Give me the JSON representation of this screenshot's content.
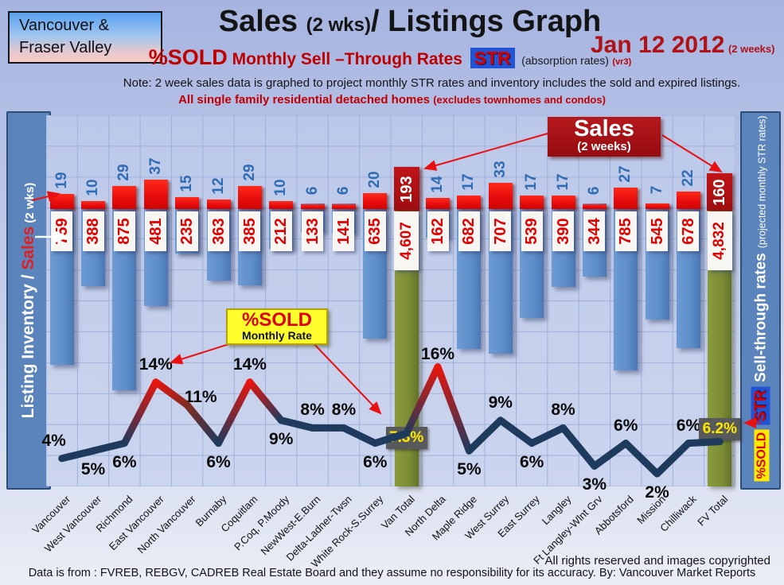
{
  "header": {
    "logo_line1": "Vancouver &",
    "logo_line2": "Fraser Valley",
    "title_main": "Sales ",
    "title_wks": "(2 wks)",
    "title_rest": "/ Listings Graph",
    "date": "Jan 12 2012",
    "date_note": "(2 weeks)",
    "subtitle_sold": "%SOLD",
    "subtitle_rates": " Monthly Sell –Through Rates ",
    "subtitle_str": "STR",
    "subtitle_absorption": "(absorption rates)",
    "subtitle_version": "(vr3)",
    "note": "Note: 2 week sales data is graphed to project monthly STR rates and inventory includes the sold and expired listings.",
    "scope": "All single family residential detached homes ",
    "scope_note": "(excludes townhomes and condos)"
  },
  "left_axis": {
    "label_white": "Listing Inventory / ",
    "label_red": "Sales",
    "label_suffix": " (2  wks)"
  },
  "right_axis": {
    "badge_sold": "%SOLD",
    "badge_str": "STR",
    "label": "Sell-through rates",
    "label_note": "(projected monthly STR rates)"
  },
  "annotations": {
    "sales_callout_line1": "Sales",
    "sales_callout_line2": "(2 weeks)",
    "sold_callout_line1": "%SOLD",
    "sold_callout_line2": "Monthly Rate"
  },
  "footer": {
    "rights": "All rights reserved and  images copyrighted",
    "source": "Data is from : FVREB, REBGV, CADREB Real Estate Board and they assume no responsibility for its accuracy. By: Vancouver Market Reports"
  },
  "colors": {
    "sales_bar": "#e80d0d",
    "total_box": "#9e0d10",
    "inventory_bar": "#5d8ec9",
    "total_bar": "#7c8d34",
    "line_navy": "#1e3a5c",
    "line_peak_red": "#e8150d",
    "line_mid": "#7e2c22",
    "pct_box_bg": "#58595b",
    "pct_box_text": "#ffe900",
    "inventory_text": "#e00000",
    "sales_text": "#2f6cb4",
    "accent_dark_red": "#b01115",
    "str_badge_blue": "#2053d6"
  },
  "chart_data": {
    "type": "bar+line combo",
    "title": "Sales (2 wks)/ Listings Graph",
    "date": "Jan 12 2012 (2 weeks)",
    "categories": [
      "Vancouver",
      "West Vancouver",
      "Richmond",
      "East Vancouver",
      "North Vancouver",
      "Burnaby",
      "Coquitlam",
      "P.Coq, P.Moody",
      "NewWest-E.Burn",
      "Delta-Ladner-Twsn",
      "White Rock-S.Surrey",
      "Van Total",
      "North Delta",
      "Maple Ridge",
      "West Surrey",
      "East Surrey",
      "Langley",
      "Ft Langley-Wlnt Grv",
      "Abbotsford",
      "Mission",
      "Chilliwack",
      "FV Total"
    ],
    "series": [
      {
        "name": "Sales (2 weeks)",
        "type": "bar",
        "values": [
          19,
          10,
          29,
          37,
          15,
          12,
          29,
          10,
          6,
          6,
          20,
          193,
          14,
          17,
          33,
          17,
          17,
          6,
          27,
          7,
          22,
          160
        ]
      },
      {
        "name": "Listing Inventory",
        "type": "bar",
        "values": [
          759,
          388,
          875,
          481,
          235,
          363,
          385,
          212,
          133,
          141,
          635,
          4607,
          162,
          682,
          707,
          539,
          390,
          344,
          785,
          545,
          678,
          4832
        ]
      },
      {
        "name": "%SOLD Monthly Rate (projected STR)",
        "type": "line",
        "values": [
          4,
          5,
          6,
          14,
          11,
          6,
          14,
          9,
          8,
          8,
          6,
          7.3,
          16,
          5,
          9,
          6,
          8,
          3,
          6,
          2,
          6,
          6.2
        ]
      }
    ],
    "sales_labels": [
      "19",
      "10",
      "29",
      "37",
      "15",
      "12",
      "29",
      "10",
      "6",
      "6",
      "20",
      "193",
      "14",
      "17",
      "33",
      "17",
      "17",
      "6",
      "27",
      "7",
      "22",
      "160"
    ],
    "inventory_labels": [
      "759",
      "388",
      "875",
      "481",
      "235",
      "363",
      "385",
      "212",
      "133",
      "141",
      "635",
      "4,607",
      "162",
      "682",
      "707",
      "539",
      "390",
      "344",
      "785",
      "545",
      "678",
      "4,832"
    ],
    "pct_labels": [
      "4%",
      "5%",
      "6%",
      "14%",
      "11%",
      "6%",
      "14%",
      "9%",
      "8%",
      "8%",
      "6%",
      "7.3%",
      "16%",
      "5%",
      "9%",
      "6%",
      "8%",
      "3%",
      "6%",
      "2%",
      "6%",
      "6.2%"
    ],
    "pct_label_side": [
      "above",
      "below",
      "below",
      "above",
      "above",
      "below",
      "above",
      "below",
      "above",
      "above",
      "below",
      "box",
      "above",
      "below",
      "above",
      "below",
      "above",
      "below",
      "above",
      "below",
      "above",
      "box"
    ],
    "totals_index": [
      11,
      21
    ],
    "legend_position": "rails (left: Listing Inventory / Sales, right: Sell-through rates)",
    "grid": true
  }
}
